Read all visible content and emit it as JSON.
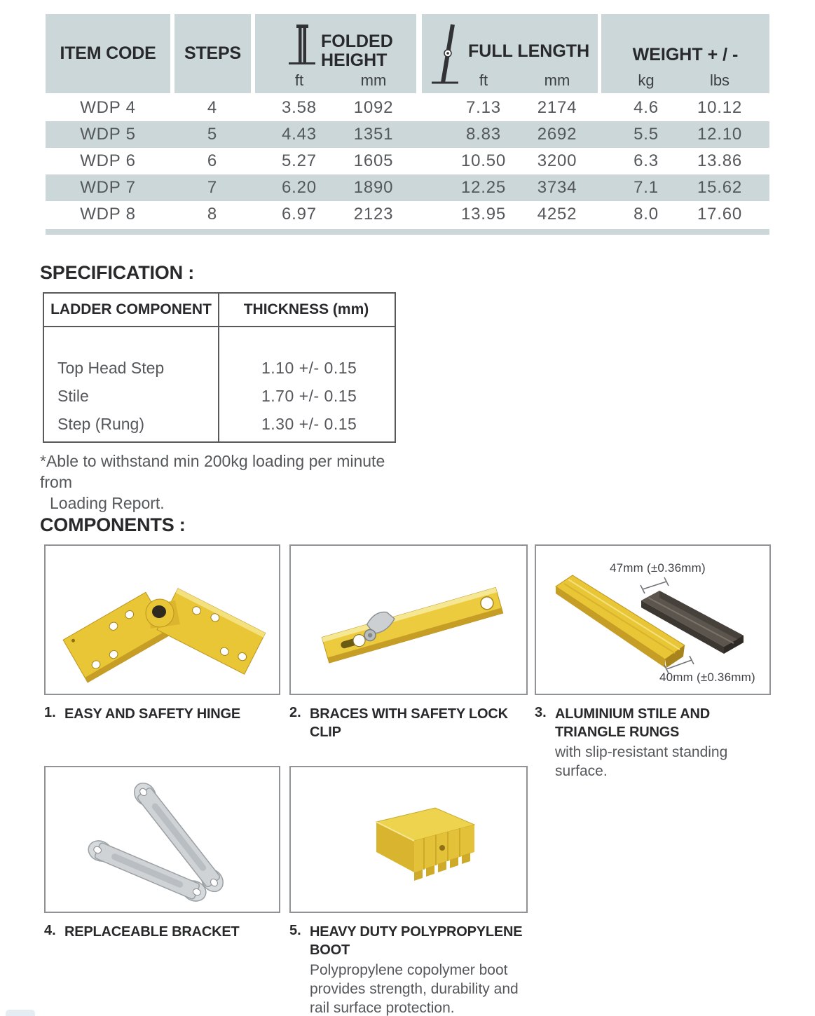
{
  "colors": {
    "band": "#ccd7da",
    "accent_yellow": "#e9c636",
    "text_dark": "#28292b",
    "text_soft": "#54585b"
  },
  "main_table": {
    "header": {
      "item_code": "ITEM CODE",
      "steps": "STEPS",
      "folded": "FOLDED HEIGHT",
      "full": "FULL LENGTH",
      "weight": "WEIGHT + / -",
      "ft": "ft",
      "mm": "mm",
      "kg": "kg",
      "lbs": "lbs"
    },
    "icons": [
      "folded-ladder-icon",
      "open-ladder-icon"
    ],
    "rows": [
      {
        "item": "WDP 4",
        "steps": "4",
        "folded_ft": "3.58",
        "folded_mm": "1092",
        "full_ft": "7.13",
        "full_mm": "2174",
        "kg": "4.6",
        "lbs": "10.12"
      },
      {
        "item": "WDP 5",
        "steps": "5",
        "folded_ft": "4.43",
        "folded_mm": "1351",
        "full_ft": "8.83",
        "full_mm": "2692",
        "kg": "5.5",
        "lbs": "12.10"
      },
      {
        "item": "WDP 6",
        "steps": "6",
        "folded_ft": "5.27",
        "folded_mm": "1605",
        "full_ft": "10.50",
        "full_mm": "3200",
        "kg": "6.3",
        "lbs": "13.86"
      },
      {
        "item": "WDP 7",
        "steps": "7",
        "folded_ft": "6.20",
        "folded_mm": "1890",
        "full_ft": "12.25",
        "full_mm": "3734",
        "kg": "7.1",
        "lbs": "15.62"
      },
      {
        "item": "WDP 8",
        "steps": "8",
        "folded_ft": "6.97",
        "folded_mm": "2123",
        "full_ft": "13.95",
        "full_mm": "4252",
        "kg": "8.0",
        "lbs": "17.60"
      }
    ]
  },
  "specification": {
    "title": "SPECIFICATION :",
    "table": {
      "headers": [
        "LADDER COMPONENT",
        "THICKNESS (mm)"
      ],
      "rows": [
        [
          "Top Head Step",
          "1.10 +/- 0.15"
        ],
        [
          "Stile",
          "1.70 +/- 0.15"
        ],
        [
          "Step (Rung)",
          "1.30 +/- 0.15"
        ]
      ]
    },
    "note_line1": "*Able to withstand min 200kg loading per minute from",
    "note_line2": "Loading Report."
  },
  "components": {
    "title": "COMPONENTS :",
    "items": [
      {
        "num": "1.",
        "caption": "EASY AND SAFETY HINGE"
      },
      {
        "num": "2.",
        "caption": "BRACES WITH SAFETY LOCK CLIP"
      },
      {
        "num": "3.",
        "caption": "ALUMINIUM STILE AND TRIANGLE RUNGS",
        "sub": "with slip-resistant standing surface.",
        "dim_top": "47mm (±0.36mm)",
        "dim_bottom": "40mm (±0.36mm)"
      },
      {
        "num": "4.",
        "caption": "REPLACEABLE BRACKET"
      },
      {
        "num": "5.",
        "caption": "HEAVY DUTY POLYPROPYLENE BOOT",
        "sub": "Polypropylene copolymer boot provides strength, durability and rail surface protection."
      }
    ]
  }
}
